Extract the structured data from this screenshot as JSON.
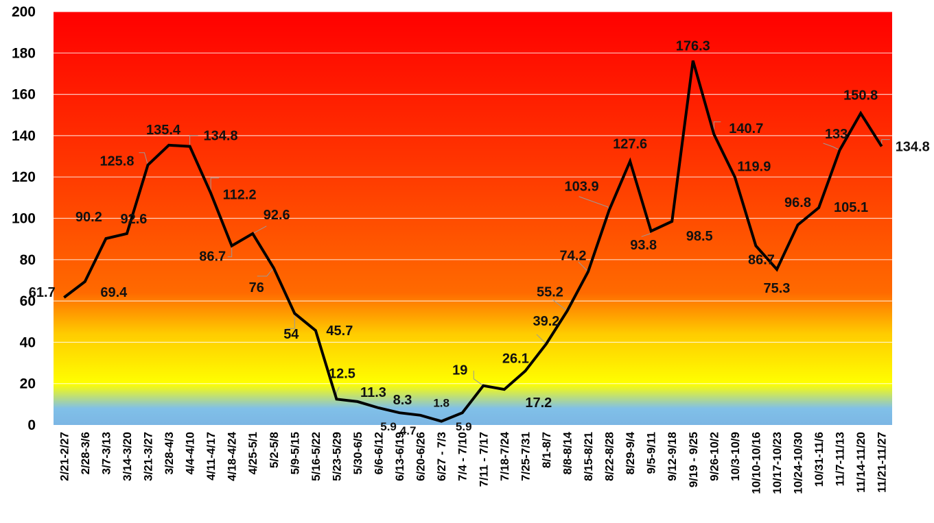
{
  "chart_data": {
    "type": "line",
    "categories": [
      "2/21-2/27",
      "2/28-3/6",
      "3/7-3/13",
      "3/14-3/20",
      "3/21-3/27",
      "3/28-4/3",
      "4/4-4/10",
      "4/11-4/17",
      "4/18-4/24",
      "4/25-5/1",
      "5/2-5/8",
      "5/9-5/15",
      "5/16-5/22",
      "5/23-5/29",
      "5/30-6/5",
      "6/6-6/12",
      "6/13-6/19",
      "6/20-6/26",
      "6/27 - 7/3",
      "7/4 - 7/10",
      "7/11 - 7/17",
      "7/18-7/24",
      "7/25-7/31",
      "8/1-8/7",
      "8/8-8/14",
      "8/15-8/21",
      "8/22-8/28",
      "8/29-9/4",
      "9/5-9/11",
      "9/12-9/18",
      "9/19 - 9/25",
      "9/26-10/2",
      "10/3-10/9",
      "10/10-10/16",
      "10/17-10/23",
      "10/24-10/30",
      "10/31-11/6",
      "11/7-11/13",
      "11/14-11/20",
      "11/21-11/27"
    ],
    "series": [
      {
        "values": [
          61.7,
          69.4,
          90.2,
          92.6,
          125.8,
          135.4,
          134.8,
          112.2,
          86.7,
          92.6,
          76,
          54,
          45.7,
          12.5,
          11.3,
          8.3,
          5.9,
          4.7,
          1.8,
          5.9,
          19,
          17.2,
          26.1,
          39.2,
          55.2,
          74.2,
          103.9,
          127.6,
          93.8,
          98.5,
          176.3,
          140.7,
          119.9,
          86.7,
          75.3,
          96.8,
          105.1,
          133,
          150.8,
          134.8
        ],
        "labels": [
          "61.7",
          "69.4",
          "90.2",
          "92.6",
          "125.8",
          "135.4",
          "134.8",
          "112.2",
          "86.7",
          "92.6",
          "76",
          "54",
          "45.7",
          "12.5",
          "11.3",
          "8.3",
          "5.9",
          "4.7",
          "1.8",
          "5.9",
          "19",
          "17.2",
          "26.1",
          "39.2",
          "55.2",
          "74.2",
          "103.9",
          "127.6",
          "93.8",
          "98.5",
          "176.3",
          "140.7",
          "119.9",
          "86.7",
          "75.3",
          "96.8",
          "105.1",
          "133",
          "150.8",
          "134.8"
        ],
        "color": "#000000"
      }
    ],
    "yticks": [
      "0",
      "20",
      "40",
      "60",
      "80",
      "100",
      "120",
      "140",
      "160",
      "180",
      "200"
    ],
    "ylim": [
      0,
      200
    ],
    "grid": true,
    "legend": "none",
    "title": "",
    "xlabel": "",
    "ylabel": "",
    "background_bands": {
      "colors": [
        "#ff0000",
        "#ff6000",
        "#ffd000",
        "#ffff00",
        "#7fb8e6"
      ]
    }
  }
}
